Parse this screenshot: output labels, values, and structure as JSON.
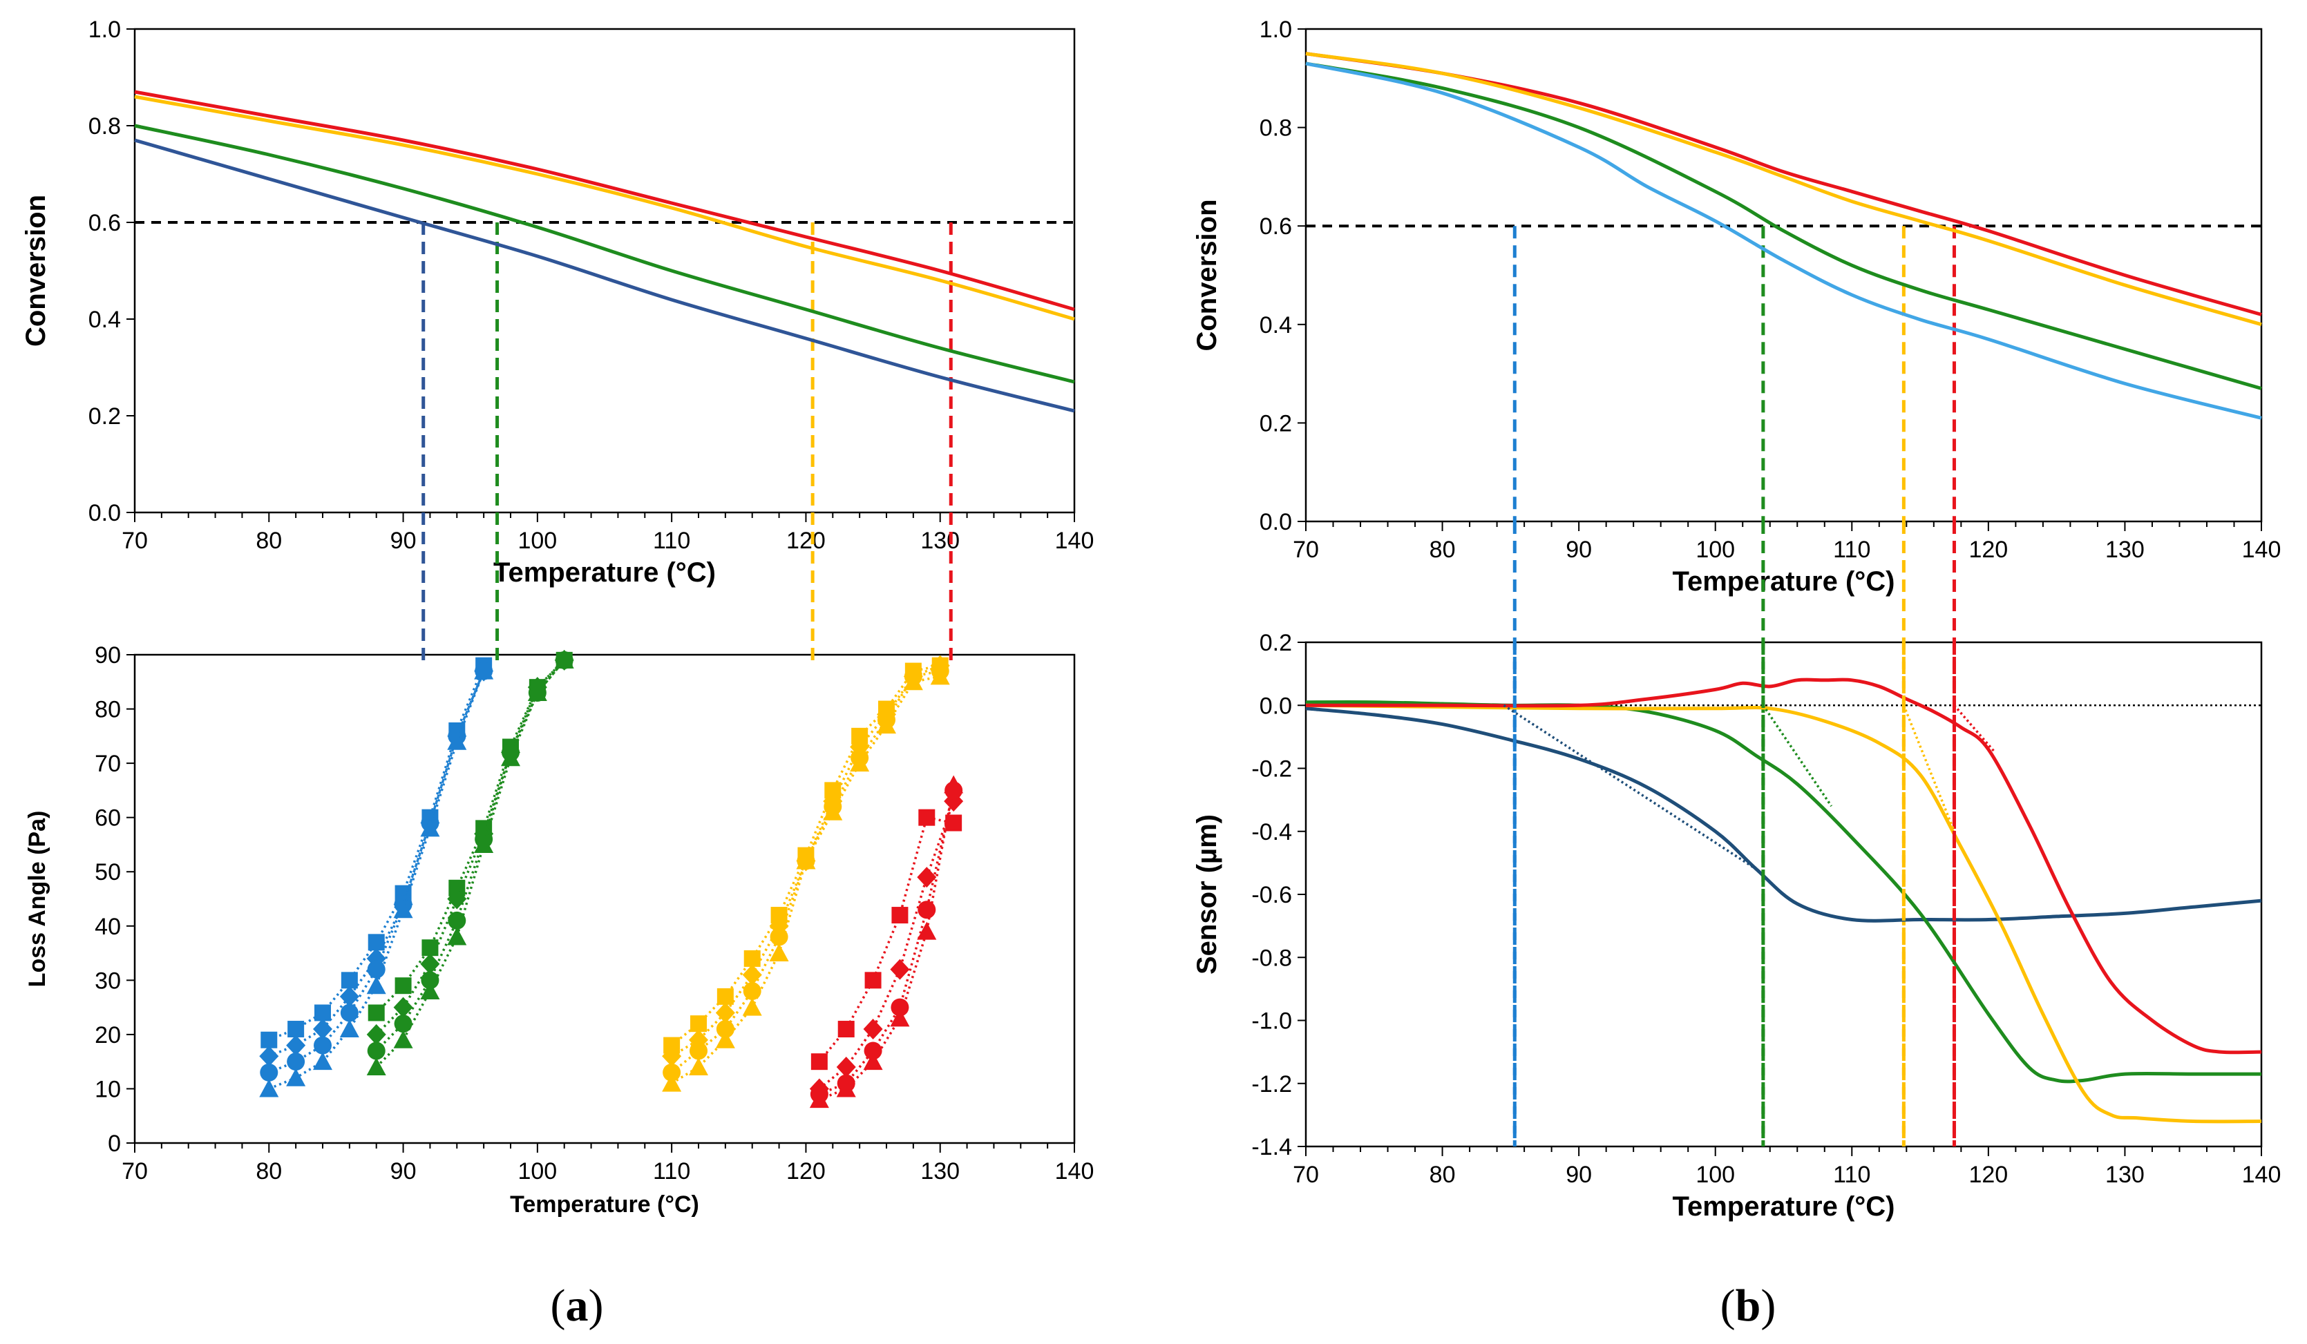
{
  "colors": {
    "red": "#e8141c",
    "yellow": "#ffc000",
    "green": "#1e8c1e",
    "blue_a": "#2f5597",
    "blue_light": "#41a6e6",
    "blue_marker": "#1d7fd1",
    "navy": "#1f4e79",
    "black": "#000000"
  },
  "chart_data": [
    {
      "id": "a-top",
      "type": "line",
      "panel": "a",
      "xlabel": "Temperature (°C)",
      "ylabel": "Conversion",
      "xlim": [
        70,
        140
      ],
      "ylim": [
        0,
        1
      ],
      "x_ticks": [
        70,
        80,
        90,
        100,
        110,
        120,
        130,
        140
      ],
      "y_ticks": [
        0.0,
        0.2,
        0.4,
        0.6,
        0.8,
        1.0
      ],
      "y_tick_labels": [
        "0.0",
        "0.2",
        "0.4",
        "0.6",
        "0.8",
        "1.0"
      ],
      "x_tick_labels": [
        "70",
        "80",
        "90",
        "100",
        "110",
        "120",
        "130",
        "140"
      ],
      "threshold": 0.6,
      "series": [
        {
          "name": "red",
          "color_key": "red",
          "x": [
            70,
            80,
            90,
            100,
            110,
            120,
            130,
            140
          ],
          "values": [
            0.87,
            0.82,
            0.77,
            0.71,
            0.64,
            0.57,
            0.5,
            0.42
          ]
        },
        {
          "name": "yellow",
          "color_key": "yellow",
          "x": [
            70,
            80,
            90,
            100,
            110,
            120,
            130,
            140
          ],
          "values": [
            0.86,
            0.81,
            0.76,
            0.7,
            0.63,
            0.55,
            0.48,
            0.4
          ]
        },
        {
          "name": "green",
          "color_key": "green",
          "x": [
            70,
            80,
            90,
            100,
            110,
            120,
            130,
            140
          ],
          "values": [
            0.8,
            0.74,
            0.67,
            0.59,
            0.5,
            0.42,
            0.34,
            0.27
          ]
        },
        {
          "name": "blue",
          "color_key": "blue_a",
          "x": [
            70,
            80,
            90,
            100,
            110,
            120,
            130,
            140
          ],
          "values": [
            0.77,
            0.69,
            0.61,
            0.53,
            0.44,
            0.36,
            0.28,
            0.21
          ]
        }
      ],
      "vlines": [
        {
          "x": 91.5,
          "color_key": "blue_a"
        },
        {
          "x": 97,
          "color_key": "green"
        },
        {
          "x": 120.5,
          "color_key": "yellow"
        },
        {
          "x": 130.8,
          "color_key": "red"
        }
      ]
    },
    {
      "id": "a-bottom",
      "type": "scatter",
      "panel": "a",
      "xlabel": "Temperature (°C)",
      "ylabel": "Loss Angle (Pa)",
      "xlim": [
        70,
        140
      ],
      "ylim": [
        0,
        90
      ],
      "x_ticks": [
        70,
        80,
        90,
        100,
        110,
        120,
        130,
        140
      ],
      "y_ticks": [
        0,
        10,
        20,
        30,
        40,
        50,
        60,
        70,
        80,
        90
      ],
      "x_tick_labels": [
        "70",
        "80",
        "90",
        "100",
        "110",
        "120",
        "130",
        "140"
      ],
      "y_tick_labels": [
        "0",
        "10",
        "20",
        "30",
        "40",
        "50",
        "60",
        "70",
        "80",
        "90"
      ],
      "series": [
        {
          "name": "blue-square",
          "color_key": "blue_marker",
          "marker": "square",
          "x": [
            80,
            82,
            84,
            86,
            88,
            90,
            92,
            94,
            96
          ],
          "values": [
            19,
            21,
            24,
            30,
            37,
            46,
            60,
            76,
            88
          ]
        },
        {
          "name": "blue-diamond",
          "color_key": "blue_marker",
          "marker": "diamond",
          "x": [
            80,
            82,
            84,
            86,
            88,
            90,
            92,
            94,
            96
          ],
          "values": [
            16,
            18,
            21,
            27,
            34,
            44,
            59,
            75,
            87
          ]
        },
        {
          "name": "blue-circle",
          "color_key": "blue_marker",
          "marker": "circle",
          "x": [
            80,
            82,
            84,
            86,
            88,
            90,
            92,
            94,
            96
          ],
          "values": [
            13,
            15,
            18,
            24,
            32,
            44,
            59,
            75,
            87
          ]
        },
        {
          "name": "blue-triangle",
          "color_key": "blue_marker",
          "marker": "triangle",
          "x": [
            80,
            82,
            84,
            86,
            88,
            90,
            92,
            94,
            96
          ],
          "values": [
            10,
            12,
            15,
            21,
            29,
            43,
            58,
            74,
            87
          ]
        },
        {
          "name": "green-square",
          "color_key": "green",
          "marker": "square",
          "x": [
            88,
            90,
            92,
            94,
            96,
            98,
            100,
            102
          ],
          "values": [
            24,
            29,
            36,
            47,
            58,
            73,
            84,
            89
          ]
        },
        {
          "name": "green-diamond",
          "color_key": "green",
          "marker": "diamond",
          "x": [
            88,
            90,
            92,
            94,
            96,
            98,
            100,
            102
          ],
          "values": [
            20,
            25,
            33,
            45,
            57,
            72,
            84,
            89
          ]
        },
        {
          "name": "green-circle",
          "color_key": "green",
          "marker": "circle",
          "x": [
            88,
            90,
            92,
            94,
            96,
            98,
            100,
            102
          ],
          "values": [
            17,
            22,
            30,
            41,
            56,
            72,
            83,
            89
          ]
        },
        {
          "name": "green-triangle",
          "color_key": "green",
          "marker": "triangle",
          "x": [
            88,
            90,
            92,
            94,
            96,
            98,
            100,
            102
          ],
          "values": [
            14,
            19,
            28,
            38,
            55,
            71,
            83,
            89
          ]
        },
        {
          "name": "yellow-square",
          "color_key": "yellow",
          "marker": "square",
          "x": [
            110,
            112,
            114,
            116,
            118,
            120,
            122,
            124,
            126,
            128,
            130
          ],
          "values": [
            18,
            22,
            27,
            34,
            42,
            53,
            65,
            75,
            80,
            87,
            88
          ]
        },
        {
          "name": "yellow-diamond",
          "color_key": "yellow",
          "marker": "diamond",
          "x": [
            110,
            112,
            114,
            116,
            118,
            120,
            122,
            124,
            126,
            128,
            130
          ],
          "values": [
            16,
            19,
            24,
            31,
            40,
            52,
            63,
            73,
            79,
            86,
            88
          ]
        },
        {
          "name": "yellow-circle",
          "color_key": "yellow",
          "marker": "circle",
          "x": [
            110,
            112,
            114,
            116,
            118,
            120,
            122,
            124,
            126,
            128,
            130
          ],
          "values": [
            13,
            17,
            21,
            28,
            38,
            52,
            62,
            71,
            78,
            86,
            87
          ]
        },
        {
          "name": "yellow-triangle",
          "color_key": "yellow",
          "marker": "triangle",
          "x": [
            110,
            112,
            114,
            116,
            118,
            120,
            122,
            124,
            126,
            128,
            130
          ],
          "values": [
            11,
            14,
            19,
            25,
            35,
            52,
            61,
            70,
            77,
            85,
            86
          ]
        },
        {
          "name": "red-square",
          "color_key": "red",
          "marker": "square",
          "x": [
            121,
            123,
            125,
            127,
            129,
            131
          ],
          "values": [
            15,
            21,
            30,
            42,
            60,
            59
          ]
        },
        {
          "name": "red-diamond",
          "color_key": "red",
          "marker": "diamond",
          "x": [
            121,
            123,
            125,
            127,
            129,
            131
          ],
          "values": [
            10,
            14,
            21,
            32,
            49,
            63
          ]
        },
        {
          "name": "red-circle",
          "color_key": "red",
          "marker": "circle",
          "x": [
            121,
            123,
            125,
            127,
            129,
            131
          ],
          "values": [
            9,
            11,
            17,
            25,
            43,
            65
          ]
        },
        {
          "name": "red-triangle",
          "color_key": "red",
          "marker": "triangle",
          "x": [
            121,
            123,
            125,
            127,
            129,
            131
          ],
          "values": [
            8,
            10,
            15,
            23,
            39,
            66
          ]
        }
      ],
      "vlines": [
        {
          "x": 91.5,
          "color_key": "blue_a"
        },
        {
          "x": 97,
          "color_key": "green"
        },
        {
          "x": 120.5,
          "color_key": "yellow"
        },
        {
          "x": 130.8,
          "color_key": "red"
        }
      ]
    },
    {
      "id": "b-top",
      "type": "line",
      "panel": "b",
      "xlabel": "Temperature (°C)",
      "ylabel": "Conversion",
      "xlim": [
        70,
        140
      ],
      "ylim": [
        0,
        1
      ],
      "x_ticks": [
        70,
        80,
        90,
        100,
        110,
        120,
        130,
        140
      ],
      "y_ticks": [
        0.0,
        0.2,
        0.4,
        0.6,
        0.8,
        1.0
      ],
      "x_tick_labels": [
        "70",
        "80",
        "90",
        "100",
        "110",
        "120",
        "130",
        "140"
      ],
      "y_tick_labels": [
        "0.0",
        "0.2",
        "0.4",
        "0.6",
        "0.8",
        "1.0"
      ],
      "threshold": 0.6,
      "series": [
        {
          "name": "red",
          "color_key": "red",
          "x": [
            70,
            80,
            90,
            100,
            105,
            110,
            115,
            120,
            130,
            140
          ],
          "values": [
            0.95,
            0.91,
            0.85,
            0.76,
            0.71,
            0.67,
            0.63,
            0.59,
            0.5,
            0.42
          ]
        },
        {
          "name": "yellow",
          "color_key": "yellow",
          "x": [
            70,
            80,
            90,
            100,
            105,
            110,
            115,
            120,
            130,
            140
          ],
          "values": [
            0.95,
            0.91,
            0.84,
            0.75,
            0.7,
            0.65,
            0.61,
            0.57,
            0.48,
            0.4
          ]
        },
        {
          "name": "green",
          "color_key": "green",
          "x": [
            70,
            80,
            90,
            100,
            105,
            110,
            115,
            120,
            130,
            140
          ],
          "values": [
            0.93,
            0.88,
            0.8,
            0.67,
            0.59,
            0.52,
            0.47,
            0.43,
            0.35,
            0.27
          ]
        },
        {
          "name": "light-blue",
          "color_key": "blue_light",
          "x": [
            70,
            80,
            90,
            95,
            100,
            105,
            110,
            115,
            120,
            130,
            140
          ],
          "values": [
            0.93,
            0.87,
            0.76,
            0.68,
            0.61,
            0.53,
            0.46,
            0.41,
            0.37,
            0.28,
            0.21
          ]
        }
      ],
      "vlines": [
        {
          "x": 85.3,
          "color_key": "blue_marker"
        },
        {
          "x": 103.5,
          "color_key": "green"
        },
        {
          "x": 113.8,
          "color_key": "yellow"
        },
        {
          "x": 117.5,
          "color_key": "red"
        }
      ]
    },
    {
      "id": "b-bottom",
      "type": "line",
      "panel": "b",
      "xlabel": "Temperature (°C)",
      "ylabel": "Sensor (µm)",
      "xlim": [
        70,
        140
      ],
      "ylim": [
        -1.4,
        0.2
      ],
      "x_ticks": [
        70,
        80,
        90,
        100,
        110,
        120,
        130,
        140
      ],
      "y_ticks": [
        -1.4,
        -1.2,
        -1.0,
        -0.8,
        -0.6,
        -0.4,
        -0.2,
        0.0,
        0.2
      ],
      "x_tick_labels": [
        "70",
        "80",
        "90",
        "100",
        "110",
        "120",
        "130",
        "140"
      ],
      "y_tick_labels": [
        "-1.4",
        "-1.2",
        "-1.0",
        "-0.8",
        "-0.6",
        "-0.4",
        "-0.2",
        "0.0",
        "0.2"
      ],
      "zero_line": 0,
      "series": [
        {
          "name": "navy",
          "color_key": "navy",
          "x": [
            70,
            75,
            80,
            85,
            90,
            95,
            100,
            103,
            106,
            110,
            115,
            120,
            125,
            130,
            135,
            140
          ],
          "values": [
            -0.01,
            -0.03,
            -0.06,
            -0.11,
            -0.17,
            -0.26,
            -0.4,
            -0.52,
            -0.63,
            -0.68,
            -0.68,
            -0.68,
            -0.67,
            -0.66,
            -0.64,
            -0.62
          ]
        },
        {
          "name": "green",
          "color_key": "green",
          "x": [
            70,
            75,
            80,
            85,
            90,
            95,
            100,
            103,
            106,
            110,
            115,
            120,
            123,
            125,
            127,
            130,
            135,
            140
          ],
          "values": [
            0.01,
            0.01,
            0.005,
            0.0,
            0.0,
            -0.02,
            -0.08,
            -0.16,
            -0.25,
            -0.42,
            -0.66,
            -0.98,
            -1.15,
            -1.19,
            -1.19,
            -1.17,
            -1.17,
            -1.17
          ]
        },
        {
          "name": "yellow",
          "color_key": "yellow",
          "x": [
            70,
            80,
            90,
            100,
            104,
            108,
            112,
            115,
            118,
            121,
            124,
            127,
            129,
            131,
            135,
            140
          ],
          "values": [
            0.0,
            -0.005,
            -0.01,
            -0.01,
            -0.01,
            -0.05,
            -0.12,
            -0.22,
            -0.45,
            -0.7,
            -0.98,
            -1.23,
            -1.3,
            -1.31,
            -1.32,
            -1.32
          ]
        },
        {
          "name": "red",
          "color_key": "red",
          "x": [
            70,
            80,
            90,
            95,
            100,
            102,
            104,
            106,
            108,
            110,
            112,
            114,
            116,
            118,
            120,
            123,
            126,
            129,
            132,
            135,
            137,
            140
          ],
          "values": [
            0.0,
            0.0,
            0.0,
            0.02,
            0.05,
            0.07,
            0.06,
            0.08,
            0.08,
            0.08,
            0.06,
            0.02,
            -0.02,
            -0.07,
            -0.14,
            -0.38,
            -0.65,
            -0.88,
            -1.0,
            -1.08,
            -1.1,
            -1.1
          ]
        }
      ],
      "fit_lines": [
        {
          "color_key": "navy",
          "x": [
            84.5,
            103
          ],
          "values": [
            0,
            -0.52
          ]
        },
        {
          "color_key": "green",
          "x": [
            103.5,
            108.5
          ],
          "values": [
            0,
            -0.32
          ]
        },
        {
          "color_key": "yellow",
          "x": [
            113.8,
            117.5
          ],
          "values": [
            0,
            -0.4
          ]
        },
        {
          "color_key": "red",
          "x": [
            117.5,
            120.5
          ],
          "values": [
            0,
            -0.15
          ]
        }
      ],
      "vlines": [
        {
          "x": 85.3,
          "color_key": "blue_marker"
        },
        {
          "x": 103.5,
          "color_key": "green"
        },
        {
          "x": 113.8,
          "color_key": "yellow"
        },
        {
          "x": 117.5,
          "color_key": "red"
        }
      ]
    }
  ],
  "panel_labels": {
    "a": {
      "open": "(",
      "letter": "a",
      "close": ")"
    },
    "b": {
      "open": "(",
      "letter": "b",
      "close": ")"
    }
  }
}
